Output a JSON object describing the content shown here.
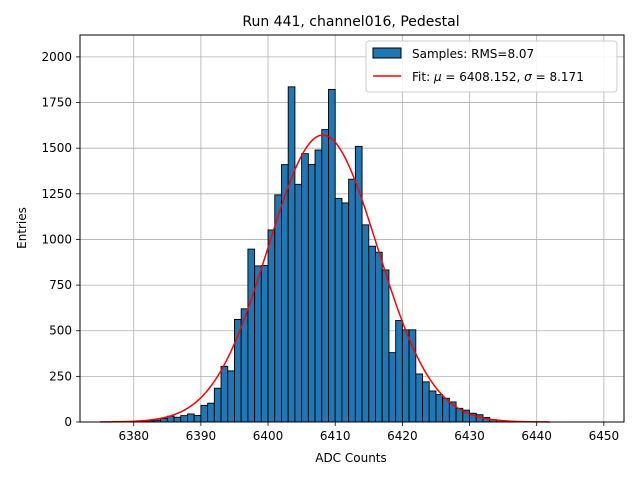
{
  "chart_data": {
    "type": "bar",
    "title": "Run 441, channel016, Pedestal",
    "xlabel": "ADC Counts",
    "ylabel": "Entries",
    "xlim": [
      6372,
      6453
    ],
    "ylim": [
      0,
      2120
    ],
    "xticks": [
      6380,
      6390,
      6400,
      6410,
      6420,
      6430,
      6440,
      6450
    ],
    "yticks": [
      0,
      250,
      500,
      750,
      1000,
      1250,
      1500,
      1750,
      2000
    ],
    "grid": true,
    "legend_position": "upper right",
    "colors": {
      "bars": "#1f77b4",
      "bar_edge": "#000000",
      "fit": "#ff0000",
      "grid": "#b0b0b0"
    },
    "histogram": {
      "bin_width": 1,
      "bin_start": [
        6379,
        6380,
        6381,
        6382,
        6383,
        6384,
        6385,
        6386,
        6387,
        6388,
        6389,
        6390,
        6391,
        6392,
        6393,
        6394,
        6395,
        6396,
        6397,
        6398,
        6399,
        6400,
        6401,
        6402,
        6403,
        6404,
        6405,
        6406,
        6407,
        6408,
        6409,
        6410,
        6411,
        6412,
        6413,
        6414,
        6415,
        6416,
        6417,
        6418,
        6419,
        6420,
        6421,
        6422,
        6423,
        6424,
        6425,
        6426,
        6427,
        6428,
        6429,
        6430,
        6431,
        6432,
        6433,
        6434,
        6435,
        6436,
        6437,
        6438,
        6439,
        6440,
        6441,
        6442,
        6443,
        6444
      ],
      "counts": [
        2,
        3,
        6,
        7,
        10,
        19,
        32,
        26,
        35,
        44,
        36,
        91,
        103,
        185,
        305,
        280,
        562,
        620,
        947,
        855,
        857,
        1052,
        1244,
        1410,
        1836,
        1302,
        1470,
        1411,
        1490,
        1602,
        1822,
        1225,
        1200,
        1330,
        1510,
        1080,
        963,
        930,
        833,
        380,
        556,
        505,
        505,
        263,
        220,
        170,
        150,
        130,
        110,
        75,
        65,
        48,
        40,
        25,
        13,
        8,
        5,
        3,
        2,
        1,
        1,
        0,
        0,
        0,
        0,
        0
      ],
      "label": "Samples: RMS=8.07"
    },
    "fit": {
      "label_prefix": "Fit: ",
      "mu_symbol": "μ",
      "sigma_symbol": "σ",
      "mu": 6408.152,
      "sigma": 8.171,
      "mu_text": "6408.152",
      "sigma_text": "8.171",
      "amplitude": 1572,
      "x_range": [
        6375,
        6442
      ]
    }
  }
}
